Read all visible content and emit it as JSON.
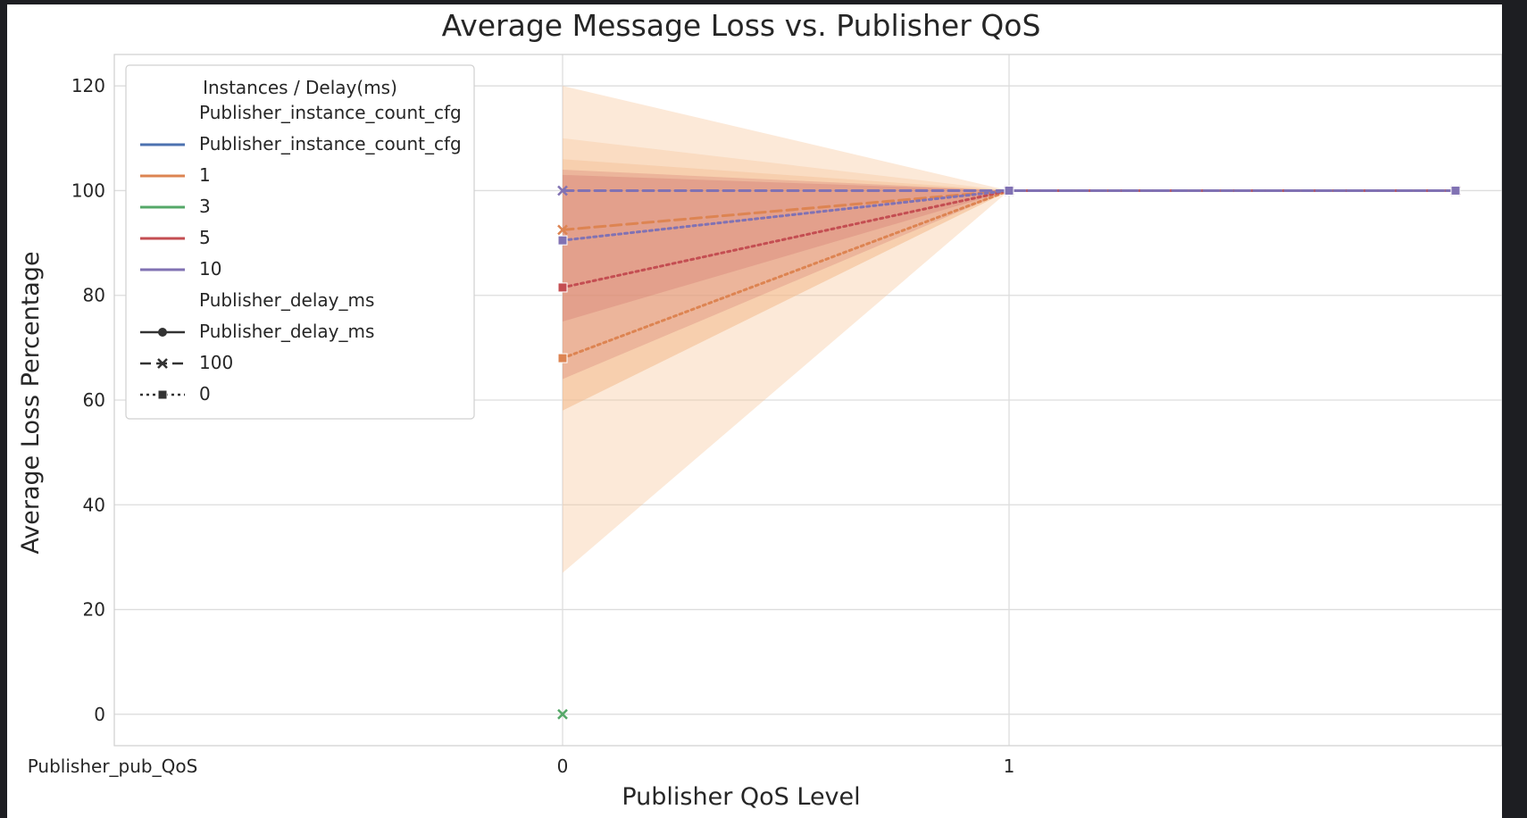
{
  "chart_data": {
    "type": "line",
    "title": "Average Message Loss vs. Publisher QoS",
    "xlabel": "Publisher QoS Level",
    "ylabel": "Average Loss Percentage",
    "x_ticks": [
      "Publisher_pub_QoS",
      "0",
      "1"
    ],
    "x_range": [
      -1,
      2
    ],
    "ylim": [
      -6,
      126
    ],
    "y_ticks": [
      0,
      20,
      40,
      60,
      80,
      100,
      120
    ],
    "grid": true,
    "legend": {
      "title": "Instances / Delay(ms)",
      "placement": "top-left",
      "entries": [
        {
          "label": "Publisher_instance_count_cfg",
          "kind": "header"
        },
        {
          "label": "Publisher_instance_count_cfg",
          "kind": "line",
          "color": "#4c72b0"
        },
        {
          "label": "1",
          "kind": "line",
          "color": "#dd8452"
        },
        {
          "label": "3",
          "kind": "line",
          "color": "#55a868"
        },
        {
          "label": "5",
          "kind": "line",
          "color": "#c44e52"
        },
        {
          "label": "10",
          "kind": "line",
          "color": "#8172b3"
        },
        {
          "label": "Publisher_delay_ms",
          "kind": "header"
        },
        {
          "label": "Publisher_delay_ms",
          "kind": "style",
          "dash": "solid",
          "marker": "circle"
        },
        {
          "label": "100",
          "kind": "style",
          "dash": "dashed",
          "marker": "x"
        },
        {
          "label": "0",
          "kind": "style",
          "dash": "dotted",
          "marker": "square"
        }
      ]
    },
    "bands": [
      {
        "color": "#f5c08e",
        "opacity": 0.35,
        "x": [
          0,
          1
        ],
        "lower": [
          27,
          100
        ],
        "upper": [
          120,
          100
        ]
      },
      {
        "color": "#f5c08e",
        "opacity": 0.3,
        "x": [
          0,
          1
        ],
        "lower": [
          58,
          100
        ],
        "upper": [
          110,
          100
        ]
      },
      {
        "color": "#f0b78a",
        "opacity": 0.35,
        "x": [
          0,
          1
        ],
        "lower": [
          58,
          100
        ],
        "upper": [
          106,
          100
        ]
      },
      {
        "color": "#c44e52",
        "opacity": 0.2,
        "x": [
          0,
          1
        ],
        "lower": [
          64,
          100
        ],
        "upper": [
          104,
          100
        ]
      },
      {
        "color": "#c44e52",
        "opacity": 0.2,
        "x": [
          0,
          1
        ],
        "lower": [
          75,
          100
        ],
        "upper": [
          103,
          100
        ]
      }
    ],
    "series": [
      {
        "name": "1",
        "delay": "100",
        "color": "#dd8452",
        "dash": "dashed",
        "marker": "x",
        "x": [
          0,
          1,
          2
        ],
        "y": [
          92.5,
          100,
          100
        ]
      },
      {
        "name": "1",
        "delay": "0",
        "color": "#dd8452",
        "dash": "dotted",
        "marker": "square",
        "x": [
          0,
          1,
          2
        ],
        "y": [
          68,
          100,
          100
        ]
      },
      {
        "name": "3",
        "delay": "100",
        "color": "#55a868",
        "dash": "dashed",
        "marker": "x",
        "x": [
          0
        ],
        "y": [
          0
        ]
      },
      {
        "name": "5",
        "delay": "0",
        "color": "#c44e52",
        "dash": "dotted",
        "marker": "square",
        "x": [
          0,
          1,
          2
        ],
        "y": [
          81.5,
          100,
          100
        ]
      },
      {
        "name": "10",
        "delay": "100",
        "color": "#8172b3",
        "dash": "dashed",
        "marker": "x",
        "x": [
          0,
          1,
          2
        ],
        "y": [
          100,
          100,
          100
        ]
      },
      {
        "name": "10",
        "delay": "0",
        "color": "#8172b3",
        "dash": "dotted",
        "marker": "square",
        "x": [
          0,
          1,
          2
        ],
        "y": [
          90.5,
          100,
          100
        ]
      }
    ]
  }
}
